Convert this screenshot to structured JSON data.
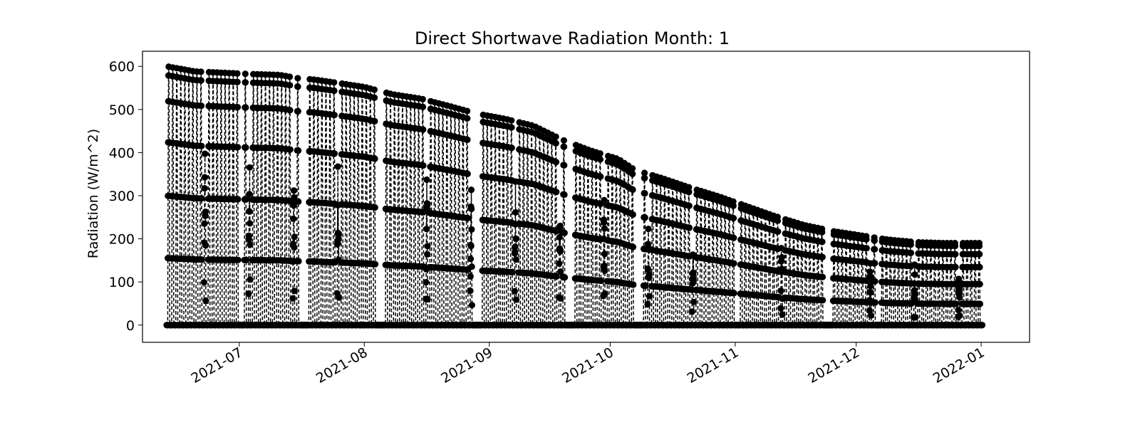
{
  "chart_data": {
    "type": "line",
    "title": "Direct Shortwave Radiation Month: 1",
    "xlabel": "",
    "ylabel": "Radiation (W/m^2)",
    "xlim": [
      "2021-06-07",
      "2022-01-13"
    ],
    "ylim": [
      -40,
      635
    ],
    "x_ticks": [
      {
        "value": "2021-07-01",
        "label": "2021-07"
      },
      {
        "value": "2021-08-01",
        "label": "2021-08"
      },
      {
        "value": "2021-09-01",
        "label": "2021-09"
      },
      {
        "value": "2021-10-01",
        "label": "2021-10"
      },
      {
        "value": "2021-11-01",
        "label": "2021-11"
      },
      {
        "value": "2021-12-01",
        "label": "2021-12"
      },
      {
        "value": "2022-01-01",
        "label": "2022-01"
      }
    ],
    "y_ticks": [
      0,
      100,
      200,
      300,
      400,
      500,
      600
    ],
    "grid": false,
    "line_style": "dashed",
    "marker": "circle",
    "color": "#000000",
    "series": [
      {
        "x_start": "2021-06-13",
        "x_end": "2022-01-01",
        "sampling": "hourly",
        "daily_peak_points": [
          [
            "2021-06-13",
            600
          ],
          [
            "2021-06-20",
            588
          ],
          [
            "2021-06-27",
            585
          ],
          [
            "2021-07-04",
            582
          ],
          [
            "2021-07-11",
            580
          ],
          [
            "2021-07-17",
            570
          ],
          [
            "2021-07-19",
            570
          ],
          [
            "2021-07-25",
            562
          ],
          [
            "2021-08-01",
            552
          ],
          [
            "2021-08-08",
            535
          ],
          [
            "2021-08-15",
            525
          ],
          [
            "2021-08-22",
            508
          ],
          [
            "2021-08-29",
            490
          ],
          [
            "2021-09-05",
            478
          ],
          [
            "2021-09-12",
            462
          ],
          [
            "2021-09-19",
            430
          ],
          [
            "2021-09-26",
            405
          ],
          [
            "2021-10-03",
            385
          ],
          [
            "2021-10-07",
            360
          ],
          [
            "2021-10-14",
            340
          ],
          [
            "2021-10-21",
            318
          ],
          [
            "2021-10-28",
            298
          ],
          [
            "2021-11-04",
            275
          ],
          [
            "2021-11-11",
            252
          ],
          [
            "2021-11-18",
            232
          ],
          [
            "2021-11-25",
            218
          ],
          [
            "2021-12-02",
            208
          ],
          [
            "2021-12-09",
            198
          ],
          [
            "2021-12-16",
            192
          ],
          [
            "2021-12-23",
            190
          ],
          [
            "2022-01-01",
            190
          ]
        ],
        "gaps": [
          [
            "2021-07-01",
            "2021-07-01"
          ],
          [
            "2021-07-16",
            "2021-07-17"
          ],
          [
            "2021-08-04",
            "2021-08-05"
          ],
          [
            "2021-08-28",
            "2021-08-29"
          ],
          [
            "2021-09-20",
            "2021-09-21"
          ],
          [
            "2021-10-07",
            "2021-10-08"
          ],
          [
            "2021-11-01",
            "2021-11-01"
          ],
          [
            "2021-11-23",
            "2021-11-24"
          ],
          [
            "2021-12-06",
            "2021-12-06"
          ]
        ]
      }
    ]
  }
}
